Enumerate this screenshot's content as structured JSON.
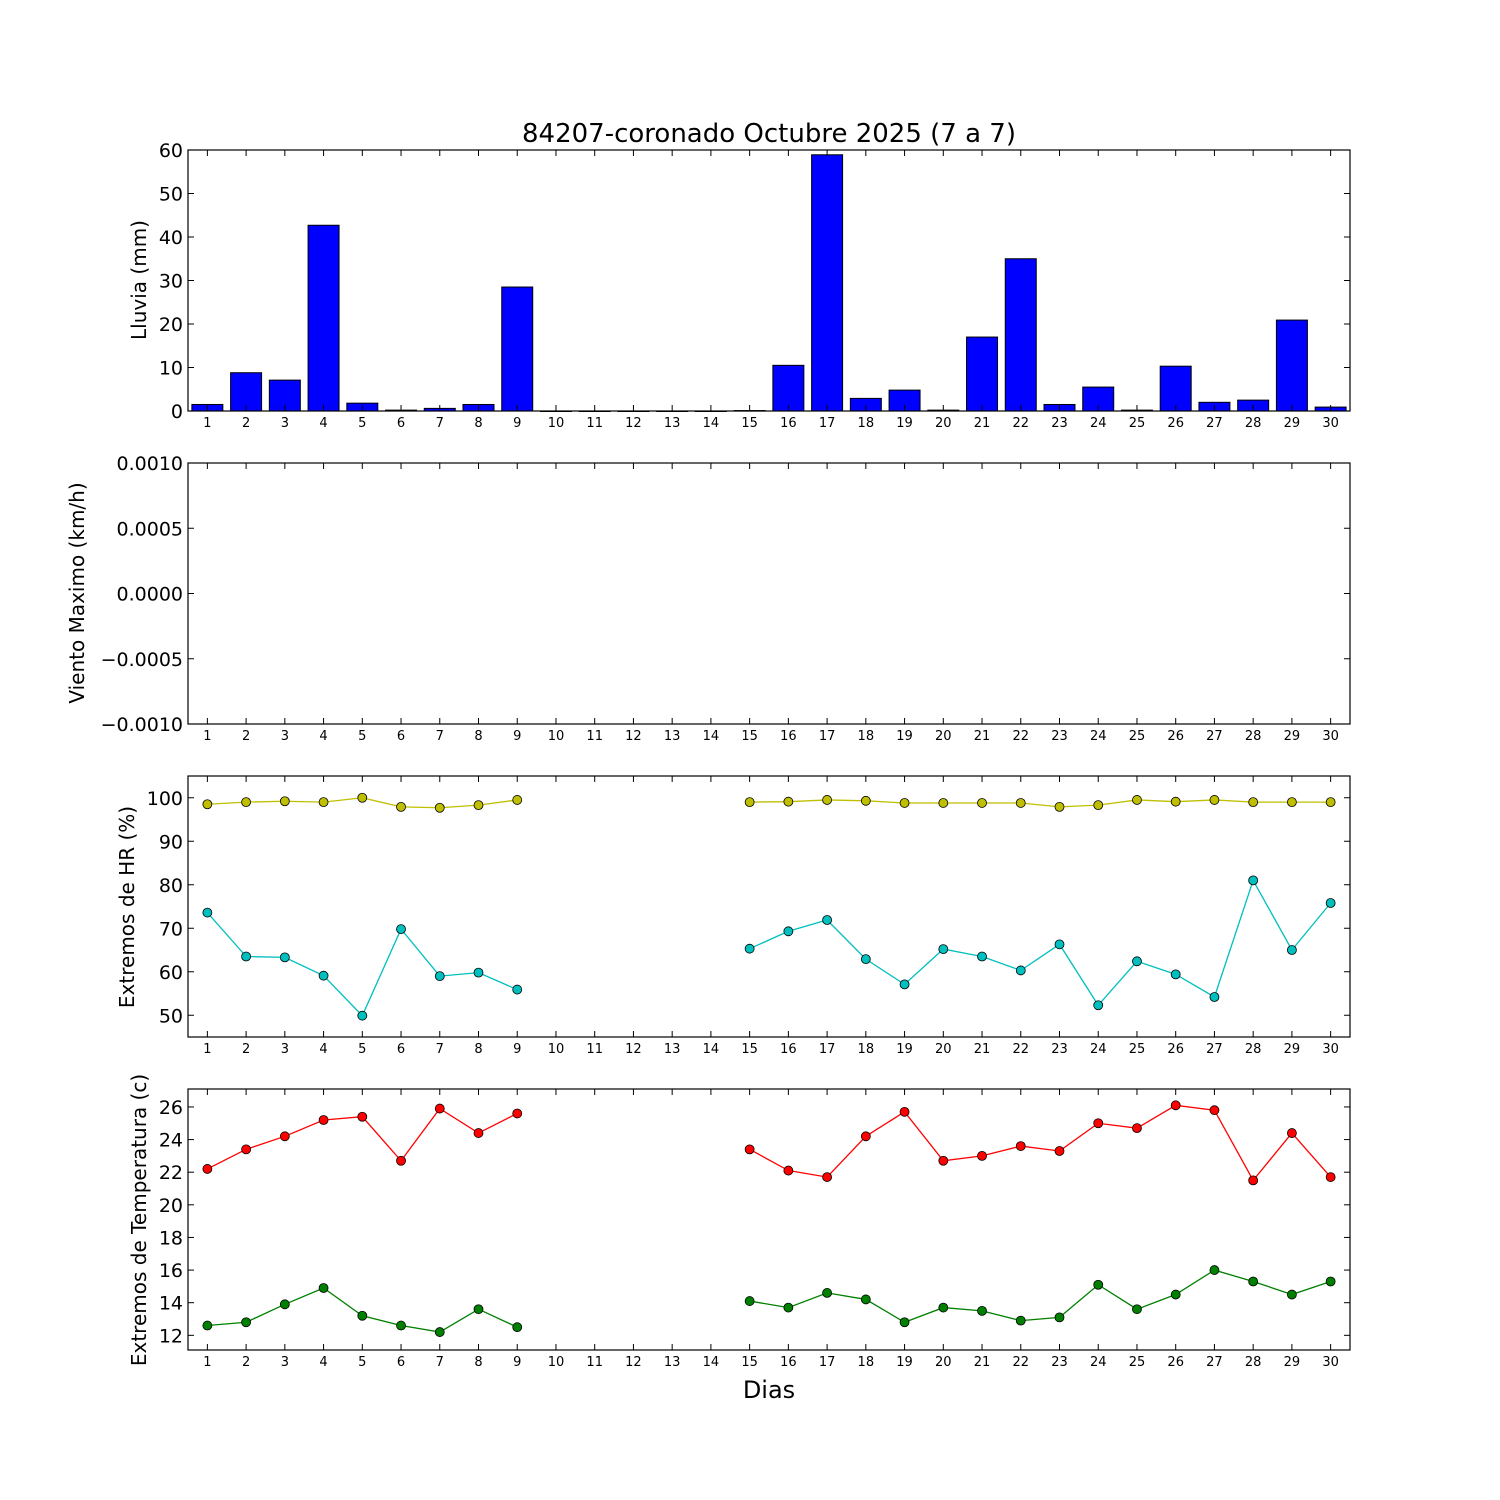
{
  "chart_data": [
    {
      "type": "bar",
      "title": "84207-coronado Octubre 2025  (7 a 7)",
      "ylabel": "Lluvia (mm)",
      "x": [
        1,
        2,
        3,
        4,
        5,
        6,
        7,
        8,
        9,
        10,
        11,
        12,
        13,
        14,
        15,
        16,
        17,
        18,
        19,
        20,
        21,
        22,
        23,
        24,
        25,
        26,
        27,
        28,
        29,
        30
      ],
      "values": [
        1.5,
        8.8,
        7.1,
        42.7,
        1.8,
        0.2,
        0.6,
        1.5,
        28.5,
        0,
        0,
        0,
        0,
        0,
        0.1,
        10.5,
        58.9,
        2.9,
        4.8,
        0.2,
        17.0,
        35.0,
        1.5,
        5.5,
        0.2,
        10.3,
        2.0,
        2.5,
        20.9,
        0.9
      ],
      "ylim": [
        0,
        60
      ],
      "yticks": [
        0,
        10,
        20,
        30,
        40,
        50,
        60
      ],
      "color": "#0000ff"
    },
    {
      "type": "line",
      "ylabel": "Viento Maximo (km/h)",
      "x": [
        1,
        2,
        3,
        4,
        5,
        6,
        7,
        8,
        9,
        10,
        11,
        12,
        13,
        14,
        15,
        16,
        17,
        18,
        19,
        20,
        21,
        22,
        23,
        24,
        25,
        26,
        27,
        28,
        29,
        30
      ],
      "series": [],
      "ylim": [
        -0.001,
        0.001
      ],
      "yticks": [
        "−0.0010",
        "−0.0005",
        "0.0000",
        "0.0005",
        "0.0010"
      ]
    },
    {
      "type": "line",
      "ylabel": "Extremos de HR (%)",
      "x": [
        1,
        2,
        3,
        4,
        5,
        6,
        7,
        8,
        9,
        10,
        11,
        12,
        13,
        14,
        15,
        16,
        17,
        18,
        19,
        20,
        21,
        22,
        23,
        24,
        25,
        26,
        27,
        28,
        29,
        30
      ],
      "series": [
        {
          "color": "#bfbf00",
          "values": [
            98.5,
            99.0,
            99.2,
            99.0,
            100.0,
            97.9,
            97.7,
            98.3,
            99.5,
            null,
            null,
            null,
            null,
            null,
            99.0,
            99.1,
            99.5,
            99.3,
            98.8,
            98.8,
            98.8,
            98.8,
            97.9,
            98.3,
            99.5,
            99.1,
            99.5,
            99.0,
            99.0,
            99.0
          ]
        },
        {
          "color": "#00bfbf",
          "values": [
            73.6,
            63.5,
            63.3,
            59.1,
            49.9,
            69.8,
            59.0,
            59.8,
            55.9,
            null,
            null,
            null,
            null,
            null,
            65.3,
            69.3,
            71.9,
            62.9,
            57.1,
            65.2,
            63.5,
            60.3,
            66.3,
            52.3,
            62.4,
            59.4,
            54.2,
            81.0,
            65.0,
            75.8
          ]
        }
      ],
      "ylim": [
        45,
        105
      ],
      "yticks": [
        50,
        60,
        70,
        80,
        90,
        100
      ]
    },
    {
      "type": "line",
      "ylabel": "Extremos de Temperatura (c)",
      "xlabel": "Dias",
      "x": [
        1,
        2,
        3,
        4,
        5,
        6,
        7,
        8,
        9,
        10,
        11,
        12,
        13,
        14,
        15,
        16,
        17,
        18,
        19,
        20,
        21,
        22,
        23,
        24,
        25,
        26,
        27,
        28,
        29,
        30
      ],
      "series": [
        {
          "color": "#ff0000",
          "values": [
            22.2,
            23.4,
            24.2,
            25.2,
            25.4,
            22.7,
            25.9,
            24.4,
            25.6,
            null,
            null,
            null,
            null,
            null,
            23.4,
            22.1,
            21.7,
            24.2,
            25.7,
            22.7,
            23.0,
            23.6,
            23.3,
            25.0,
            24.7,
            26.1,
            25.8,
            21.5,
            24.4,
            21.7
          ]
        },
        {
          "color": "#008000",
          "values": [
            12.6,
            12.8,
            13.9,
            14.9,
            13.2,
            12.6,
            12.2,
            13.6,
            12.5,
            null,
            null,
            null,
            null,
            null,
            14.1,
            13.7,
            14.6,
            14.2,
            12.8,
            13.7,
            13.5,
            12.9,
            13.1,
            15.1,
            13.6,
            14.5,
            16.0,
            15.3,
            14.5,
            15.3
          ]
        }
      ],
      "ylim": [
        11.1,
        27.1
      ],
      "yticks": [
        12,
        14,
        16,
        18,
        20,
        22,
        24,
        26
      ]
    }
  ]
}
